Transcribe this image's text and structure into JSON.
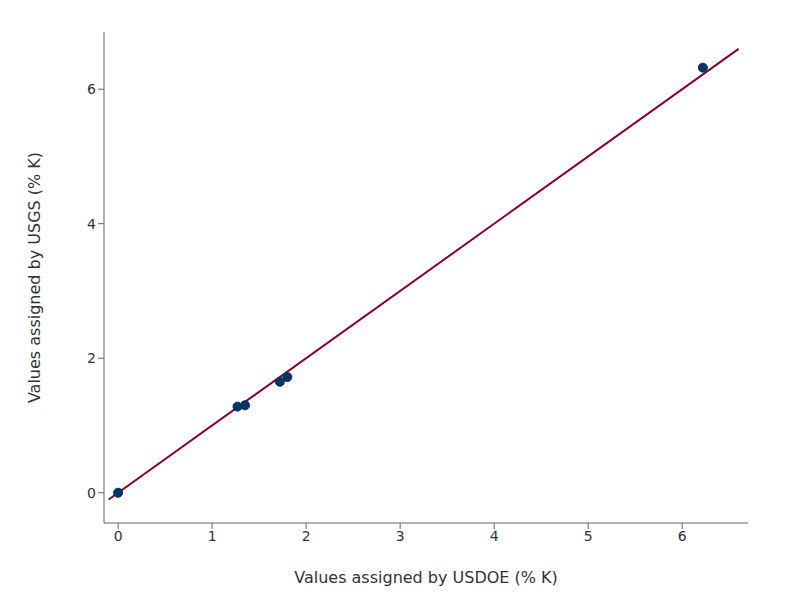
{
  "chart_data": {
    "type": "scatter",
    "xlabel": "Values assigned by USDOE (% K)",
    "ylabel": "Values assigned by USGS (% K)",
    "series": [
      {
        "type": "line",
        "color": "#8B0030",
        "x": [
          -0.1,
          6.6
        ],
        "values": [
          -0.1,
          6.6
        ]
      },
      {
        "type": "scatter",
        "color": "#003366",
        "x": [
          0.0,
          1.27,
          1.35,
          1.72,
          1.8,
          6.22
        ],
        "values": [
          0.0,
          1.28,
          1.3,
          1.65,
          1.72,
          6.32
        ]
      }
    ],
    "xlim": [
      -0.15,
      6.7
    ],
    "ylim": [
      -0.45,
      6.85
    ],
    "xticks": [
      0,
      1,
      2,
      3,
      4,
      5,
      6
    ],
    "yticks": [
      0,
      2,
      4,
      6
    ],
    "grid": false
  }
}
